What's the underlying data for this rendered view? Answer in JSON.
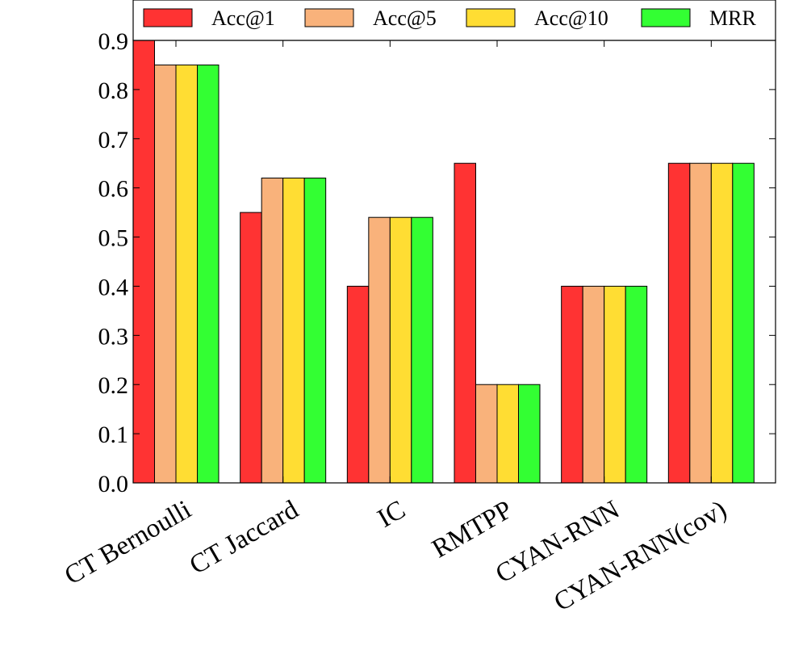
{
  "chart_data": {
    "type": "bar",
    "categories": [
      "CT Bernoulli",
      "CT Jaccard",
      "IC",
      "RMTPP",
      "CYAN-RNN",
      "CYAN-RNN(cov)"
    ],
    "series": [
      {
        "name": "Acc@1",
        "color": "#ff3333",
        "values": [
          0.9,
          0.55,
          0.4,
          0.65,
          0.4,
          0.65
        ]
      },
      {
        "name": "Acc@5",
        "color": "#f9b27b",
        "values": [
          0.85,
          0.62,
          0.54,
          0.2,
          0.4,
          0.65
        ]
      },
      {
        "name": "Acc@10",
        "color": "#ffdd33",
        "values": [
          0.85,
          0.62,
          0.54,
          0.2,
          0.4,
          0.65
        ]
      },
      {
        "name": "MRR",
        "color": "#33ff33",
        "values": [
          0.85,
          0.62,
          0.54,
          0.2,
          0.4,
          0.65
        ]
      }
    ],
    "ylim": [
      0,
      0.9
    ],
    "yticks": [
      "0.0",
      "0.1",
      "0.2",
      "0.3",
      "0.4",
      "0.5",
      "0.6",
      "0.7",
      "0.8",
      "0.9"
    ],
    "xlabel": "",
    "ylabel": "",
    "title": "",
    "legend_position": "top",
    "grid": false
  }
}
